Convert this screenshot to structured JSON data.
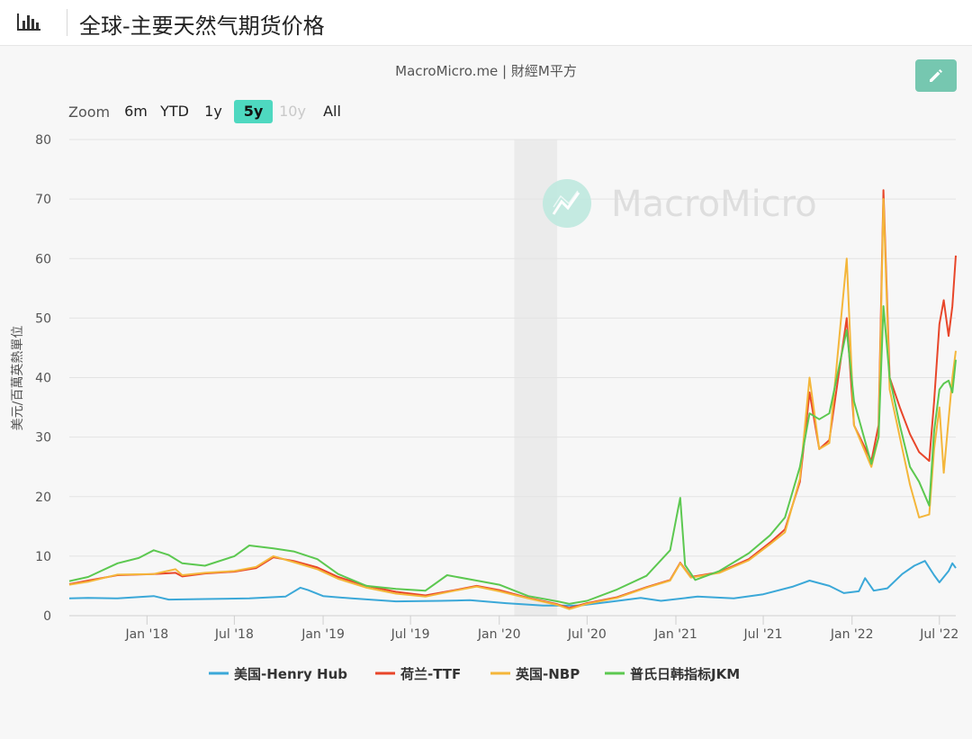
{
  "header": {
    "title": "全球-主要天然气期货价格",
    "icon": "bar-chart-icon"
  },
  "source": "MacroMicro.me | 財經M平方",
  "edit_icon": "pencil-icon",
  "watermark": "MacroMicro",
  "zoom": {
    "label": "Zoom",
    "options": [
      {
        "label": "6m",
        "state": "normal"
      },
      {
        "label": "YTD",
        "state": "normal"
      },
      {
        "label": "1y",
        "state": "normal"
      },
      {
        "label": "5y",
        "state": "active"
      },
      {
        "label": "10y",
        "state": "disabled"
      },
      {
        "label": "All",
        "state": "normal"
      }
    ]
  },
  "colors": {
    "henry_hub": "#3ba8d8",
    "ttf": "#e8462a",
    "nbp": "#f4b63a",
    "jkm": "#5cc850",
    "zoom_active": "#4ed8c0",
    "edit_button": "#76c7b0"
  },
  "chart_data": {
    "type": "line",
    "ylabel": "美元/百萬英熱單位",
    "ylim": [
      0,
      80
    ],
    "yticks": [
      0,
      10,
      20,
      30,
      40,
      50,
      60,
      70,
      80
    ],
    "xlim": [
      "2017-07-24",
      "2022-08-04"
    ],
    "xticks": [
      {
        "date": "2018-01-01",
        "label": "Jan '18"
      },
      {
        "date": "2018-07-01",
        "label": "Jul '18"
      },
      {
        "date": "2019-01-01",
        "label": "Jan '19"
      },
      {
        "date": "2019-07-01",
        "label": "Jul '19"
      },
      {
        "date": "2020-01-01",
        "label": "Jan '20"
      },
      {
        "date": "2020-07-01",
        "label": "Jul '20"
      },
      {
        "date": "2021-01-01",
        "label": "Jan '21"
      },
      {
        "date": "2021-07-01",
        "label": "Jul '21"
      },
      {
        "date": "2022-01-01",
        "label": "Jan '22"
      },
      {
        "date": "2022-07-01",
        "label": "Jul '22"
      }
    ],
    "recession_band": [
      "2020-02-01",
      "2020-04-30"
    ],
    "grid": true,
    "legend_position": "bottom",
    "series": [
      {
        "name": "美国-Henry Hub",
        "color": "#3ba8d8",
        "points": [
          [
            "2017-07-24",
            2.9
          ],
          [
            "2017-09-01",
            3.0
          ],
          [
            "2017-11-01",
            2.9
          ],
          [
            "2018-01-15",
            3.3
          ],
          [
            "2018-02-15",
            2.7
          ],
          [
            "2018-05-01",
            2.8
          ],
          [
            "2018-08-01",
            2.9
          ],
          [
            "2018-10-15",
            3.2
          ],
          [
            "2018-11-15",
            4.7
          ],
          [
            "2018-12-01",
            4.3
          ],
          [
            "2019-01-01",
            3.3
          ],
          [
            "2019-03-01",
            2.9
          ],
          [
            "2019-06-01",
            2.4
          ],
          [
            "2019-09-01",
            2.5
          ],
          [
            "2019-11-01",
            2.6
          ],
          [
            "2020-01-15",
            2.1
          ],
          [
            "2020-04-01",
            1.7
          ],
          [
            "2020-06-15",
            1.7
          ],
          [
            "2020-08-15",
            2.3
          ],
          [
            "2020-10-20",
            3.0
          ],
          [
            "2020-12-01",
            2.5
          ],
          [
            "2021-02-15",
            3.2
          ],
          [
            "2021-05-01",
            2.9
          ],
          [
            "2021-07-01",
            3.6
          ],
          [
            "2021-09-01",
            4.9
          ],
          [
            "2021-10-05",
            5.9
          ],
          [
            "2021-11-15",
            5.0
          ],
          [
            "2021-12-15",
            3.8
          ],
          [
            "2022-01-15",
            4.1
          ],
          [
            "2022-01-28",
            6.3
          ],
          [
            "2022-02-15",
            4.2
          ],
          [
            "2022-03-15",
            4.6
          ],
          [
            "2022-04-15",
            7.0
          ],
          [
            "2022-05-10",
            8.4
          ],
          [
            "2022-06-01",
            9.2
          ],
          [
            "2022-06-20",
            6.8
          ],
          [
            "2022-07-01",
            5.6
          ],
          [
            "2022-07-20",
            7.5
          ],
          [
            "2022-07-28",
            8.8
          ],
          [
            "2022-08-04",
            8.0
          ]
        ]
      },
      {
        "name": "荷兰-TTF",
        "color": "#e8462a",
        "points": [
          [
            "2017-07-24",
            5.3
          ],
          [
            "2017-09-01",
            5.9
          ],
          [
            "2017-11-01",
            6.8
          ],
          [
            "2018-01-15",
            7.0
          ],
          [
            "2018-03-01",
            7.2
          ],
          [
            "2018-03-15",
            6.6
          ],
          [
            "2018-05-01",
            7.1
          ],
          [
            "2018-07-01",
            7.4
          ],
          [
            "2018-08-15",
            8.0
          ],
          [
            "2018-09-20",
            9.8
          ],
          [
            "2018-11-01",
            9.2
          ],
          [
            "2018-12-20",
            8.1
          ],
          [
            "2019-02-01",
            6.5
          ],
          [
            "2019-04-01",
            5.0
          ],
          [
            "2019-06-01",
            4.0
          ],
          [
            "2019-08-01",
            3.4
          ],
          [
            "2019-10-01",
            4.3
          ],
          [
            "2019-11-15",
            5.0
          ],
          [
            "2020-01-01",
            4.3
          ],
          [
            "2020-03-01",
            3.0
          ],
          [
            "2020-05-01",
            1.9
          ],
          [
            "2020-05-25",
            1.3
          ],
          [
            "2020-07-01",
            2.1
          ],
          [
            "2020-09-01",
            3.1
          ],
          [
            "2020-11-01",
            4.8
          ],
          [
            "2020-12-20",
            6.0
          ],
          [
            "2021-01-10",
            8.9
          ],
          [
            "2021-02-01",
            6.5
          ],
          [
            "2021-04-01",
            7.3
          ],
          [
            "2021-06-01",
            9.5
          ],
          [
            "2021-07-15",
            12.3
          ],
          [
            "2021-08-15",
            14.5
          ],
          [
            "2021-09-15",
            22.5
          ],
          [
            "2021-10-05",
            37.5
          ],
          [
            "2021-10-25",
            28.0
          ],
          [
            "2021-11-15",
            29.5
          ],
          [
            "2021-12-21",
            50.0
          ],
          [
            "2022-01-05",
            32.0
          ],
          [
            "2022-02-10",
            26.0
          ],
          [
            "2022-02-25",
            32.0
          ],
          [
            "2022-03-07",
            71.5
          ],
          [
            "2022-03-20",
            40.0
          ],
          [
            "2022-04-10",
            35.0
          ],
          [
            "2022-05-01",
            30.5
          ],
          [
            "2022-05-20",
            27.5
          ],
          [
            "2022-06-10",
            26.0
          ],
          [
            "2022-06-20",
            36.0
          ],
          [
            "2022-07-01",
            49.0
          ],
          [
            "2022-07-10",
            53.0
          ],
          [
            "2022-07-20",
            47.0
          ],
          [
            "2022-07-28",
            52.0
          ],
          [
            "2022-08-04",
            60.5
          ]
        ]
      },
      {
        "name": "英国-NBP",
        "color": "#f4b63a",
        "points": [
          [
            "2017-07-24",
            5.2
          ],
          [
            "2017-09-01",
            5.7
          ],
          [
            "2017-11-01",
            6.9
          ],
          [
            "2018-01-15",
            7.0
          ],
          [
            "2018-03-01",
            7.8
          ],
          [
            "2018-03-15",
            6.8
          ],
          [
            "2018-05-01",
            7.2
          ],
          [
            "2018-07-01",
            7.5
          ],
          [
            "2018-08-15",
            8.2
          ],
          [
            "2018-09-20",
            10.0
          ],
          [
            "2018-11-01",
            9.0
          ],
          [
            "2018-12-20",
            7.8
          ],
          [
            "2019-02-01",
            6.2
          ],
          [
            "2019-04-01",
            4.7
          ],
          [
            "2019-06-01",
            3.7
          ],
          [
            "2019-08-01",
            3.2
          ],
          [
            "2019-10-01",
            4.2
          ],
          [
            "2019-11-15",
            4.9
          ],
          [
            "2020-01-01",
            4.1
          ],
          [
            "2020-03-01",
            2.9
          ],
          [
            "2020-05-01",
            1.8
          ],
          [
            "2020-05-25",
            1.1
          ],
          [
            "2020-07-01",
            2.0
          ],
          [
            "2020-09-01",
            3.0
          ],
          [
            "2020-11-01",
            4.7
          ],
          [
            "2020-12-20",
            5.9
          ],
          [
            "2021-01-10",
            8.8
          ],
          [
            "2021-02-01",
            6.4
          ],
          [
            "2021-04-01",
            7.2
          ],
          [
            "2021-06-01",
            9.3
          ],
          [
            "2021-07-15",
            12.0
          ],
          [
            "2021-08-15",
            14.0
          ],
          [
            "2021-09-15",
            23.0
          ],
          [
            "2021-10-05",
            40.0
          ],
          [
            "2021-10-25",
            28.0
          ],
          [
            "2021-11-15",
            29.0
          ],
          [
            "2021-12-21",
            60.0
          ],
          [
            "2022-01-05",
            32.0
          ],
          [
            "2022-02-10",
            25.0
          ],
          [
            "2022-02-25",
            30.0
          ],
          [
            "2022-03-07",
            70.0
          ],
          [
            "2022-03-20",
            38.0
          ],
          [
            "2022-04-10",
            30.0
          ],
          [
            "2022-05-01",
            22.0
          ],
          [
            "2022-05-20",
            16.5
          ],
          [
            "2022-06-10",
            17.0
          ],
          [
            "2022-06-20",
            28.0
          ],
          [
            "2022-07-01",
            35.0
          ],
          [
            "2022-07-10",
            24.0
          ],
          [
            "2022-07-20",
            33.0
          ],
          [
            "2022-07-28",
            40.0
          ],
          [
            "2022-08-04",
            44.5
          ]
        ]
      },
      {
        "name": "普氏日韩指标JKM",
        "color": "#5cc850",
        "points": [
          [
            "2017-07-24",
            5.8
          ],
          [
            "2017-09-01",
            6.5
          ],
          [
            "2017-11-01",
            8.8
          ],
          [
            "2017-12-15",
            9.7
          ],
          [
            "2018-01-15",
            11.0
          ],
          [
            "2018-02-15",
            10.2
          ],
          [
            "2018-03-15",
            8.8
          ],
          [
            "2018-05-01",
            8.4
          ],
          [
            "2018-07-01",
            10.0
          ],
          [
            "2018-08-01",
            11.8
          ],
          [
            "2018-09-20",
            11.3
          ],
          [
            "2018-11-01",
            10.8
          ],
          [
            "2018-12-20",
            9.5
          ],
          [
            "2019-02-01",
            7.0
          ],
          [
            "2019-04-01",
            5.0
          ],
          [
            "2019-06-01",
            4.5
          ],
          [
            "2019-08-01",
            4.2
          ],
          [
            "2019-09-15",
            6.8
          ],
          [
            "2019-11-15",
            5.9
          ],
          [
            "2020-01-01",
            5.2
          ],
          [
            "2020-03-01",
            3.3
          ],
          [
            "2020-05-01",
            2.4
          ],
          [
            "2020-05-25",
            2.0
          ],
          [
            "2020-07-01",
            2.5
          ],
          [
            "2020-09-01",
            4.4
          ],
          [
            "2020-11-01",
            6.7
          ],
          [
            "2020-12-20",
            11.0
          ],
          [
            "2021-01-10",
            19.8
          ],
          [
            "2021-01-20",
            8.5
          ],
          [
            "2021-02-10",
            6.0
          ],
          [
            "2021-04-01",
            7.5
          ],
          [
            "2021-06-01",
            10.5
          ],
          [
            "2021-07-15",
            13.5
          ],
          [
            "2021-08-15",
            16.5
          ],
          [
            "2021-09-15",
            25.0
          ],
          [
            "2021-10-05",
            34.0
          ],
          [
            "2021-10-25",
            33.0
          ],
          [
            "2021-11-15",
            34.0
          ],
          [
            "2021-12-21",
            48.0
          ],
          [
            "2022-01-05",
            36.0
          ],
          [
            "2022-02-10",
            25.5
          ],
          [
            "2022-02-25",
            30.0
          ],
          [
            "2022-03-07",
            52.0
          ],
          [
            "2022-03-20",
            40.0
          ],
          [
            "2022-04-10",
            32.0
          ],
          [
            "2022-05-01",
            25.0
          ],
          [
            "2022-05-20",
            22.5
          ],
          [
            "2022-06-10",
            18.5
          ],
          [
            "2022-06-20",
            31.0
          ],
          [
            "2022-07-01",
            38.0
          ],
          [
            "2022-07-10",
            39.0
          ],
          [
            "2022-07-20",
            39.5
          ],
          [
            "2022-07-28",
            37.5
          ],
          [
            "2022-08-04",
            43.0
          ]
        ]
      }
    ]
  }
}
